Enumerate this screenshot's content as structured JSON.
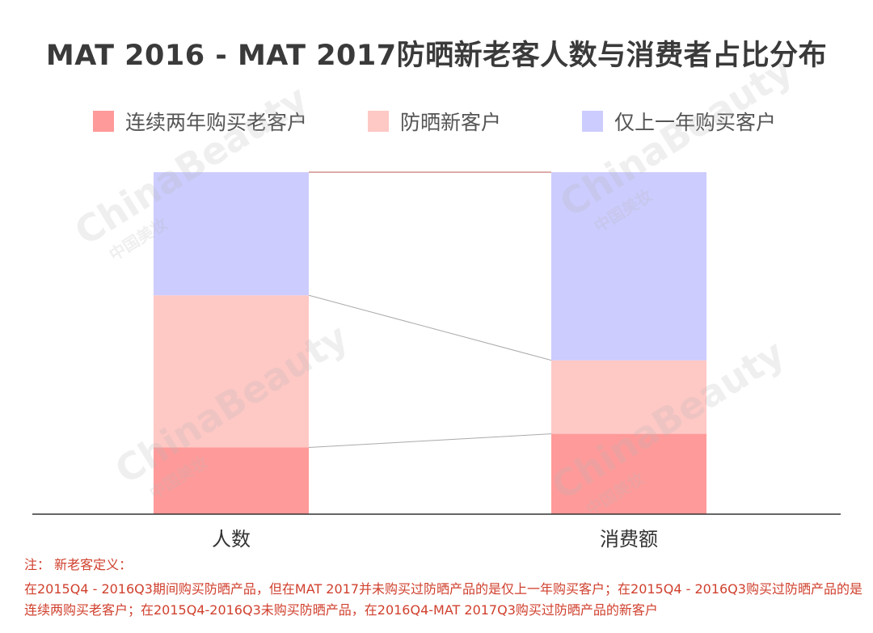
{
  "chart_data": {
    "type": "bar",
    "stacked": true,
    "normalized": true,
    "title": "MAT 2016 - MAT 2017防晒新老客人数与消费者占比分布",
    "categories": [
      "人数",
      "消费额"
    ],
    "series": [
      {
        "name": "连续两年购买老客户",
        "color": "#fe9a99",
        "values": [
          19.5,
          23.5
        ]
      },
      {
        "name": "防晒新客户",
        "color": "#fec8c5",
        "values": [
          44.5,
          21.5
        ]
      },
      {
        "name": "仅上一年购买客户",
        "color": "#ccccfe",
        "values": [
          36,
          55
        ]
      }
    ],
    "ylim": [
      0,
      100
    ],
    "legend_position": "top",
    "grid": false
  },
  "watermark": {
    "main": "ChinaBeauty",
    "sub": "中国美妆"
  },
  "note": {
    "title": "注：  新老客定义：",
    "body": "在2015Q4 - 2016Q3期间购买防晒产品，但在MAT 2017并未购买过防晒产品的是仅上一年购买客户；在2015Q4 - 2016Q3购买过防晒产品的是连续两购买老客户；在2015Q4-2016Q3未购买防晒产品，在2016Q4-MAT 2017Q3购买过防晒产品的新客户"
  }
}
